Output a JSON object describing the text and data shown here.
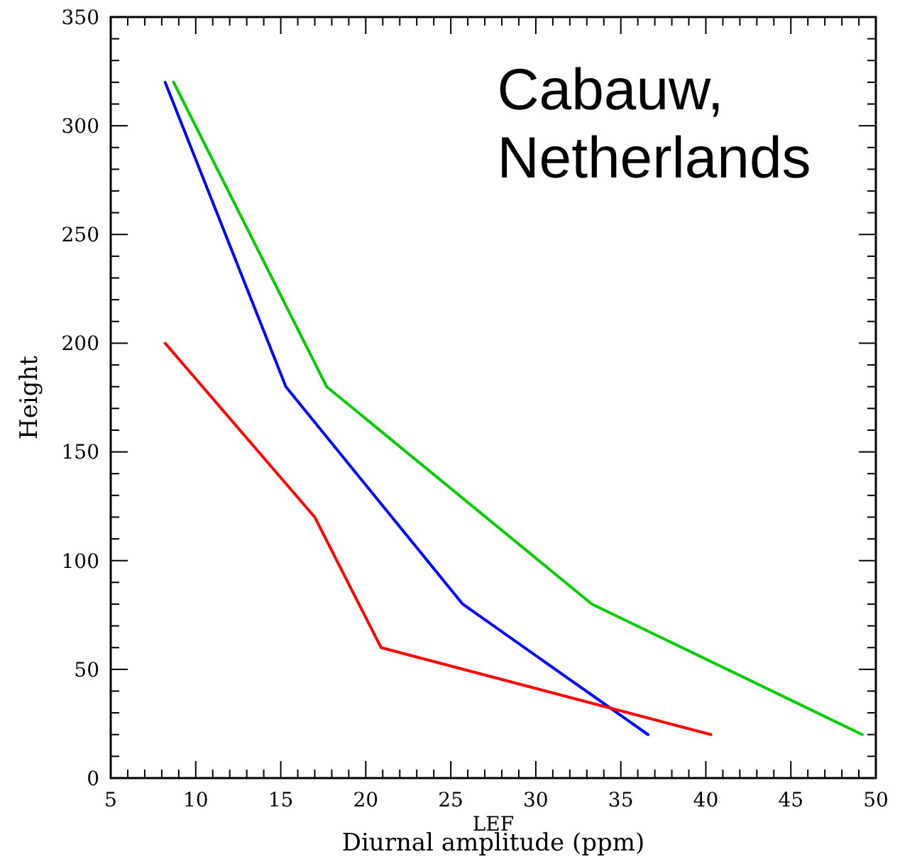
{
  "chart_data": {
    "type": "line",
    "title": "Cabauw,\nNetherlands",
    "xlabel": "Diurnal amplitude (ppm)",
    "ylabel": "Height",
    "annotations": [
      "LEF"
    ],
    "xlim": [
      5,
      50
    ],
    "xticks": [
      5,
      10,
      15,
      20,
      25,
      30,
      35,
      40,
      45,
      50
    ],
    "ylim": [
      0,
      350
    ],
    "yticks": [
      0,
      50,
      100,
      150,
      200,
      250,
      300,
      350
    ],
    "grid": false,
    "marker": "none",
    "line_style": "solid",
    "series": [
      {
        "color": "#0000ff",
        "x": [
          8.2,
          15.3,
          25.7,
          36.6
        ],
        "values": [
          320,
          180,
          80,
          20
        ]
      },
      {
        "color": "#00cc00",
        "x": [
          8.7,
          17.7,
          33.3,
          49.2
        ],
        "values": [
          320,
          180,
          80,
          20
        ]
      },
      {
        "color": "#ff0000",
        "x": [
          8.2,
          17.0,
          20.9,
          40.3
        ],
        "values": [
          200,
          120,
          60,
          20
        ]
      }
    ]
  }
}
